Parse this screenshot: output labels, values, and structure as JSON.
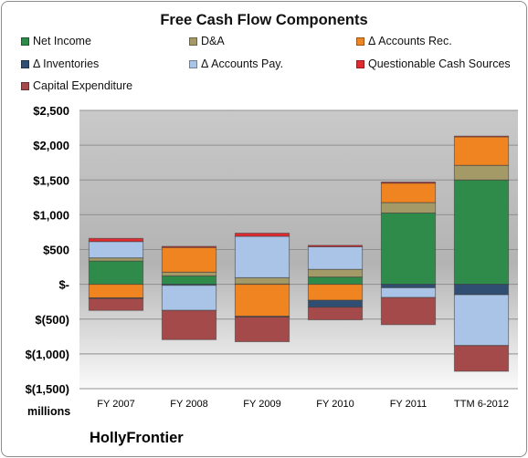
{
  "chart_data": {
    "type": "bar",
    "stacked": true,
    "title": "Free Cash Flow Components",
    "unit_label": "millions",
    "company": "HollyFrontier",
    "ylim": [
      -1500,
      2500
    ],
    "yticks": [
      {
        "value": 2500,
        "label": "$2,500"
      },
      {
        "value": 2000,
        "label": "$2,000"
      },
      {
        "value": 1500,
        "label": "$1,500"
      },
      {
        "value": 1000,
        "label": "$1,000"
      },
      {
        "value": 500,
        "label": "$500"
      },
      {
        "value": 0,
        "label": "$-"
      },
      {
        "value": -500,
        "label": "$(500)"
      },
      {
        "value": -1000,
        "label": "$(1,000)"
      },
      {
        "value": -1500,
        "label": "$(1,500)"
      }
    ],
    "grid": true,
    "legend_position": "top",
    "categories": [
      "FY 2007",
      "FY 2008",
      "FY 2009",
      "FY 2010",
      "FY 2011",
      "TTM 6-2012"
    ],
    "series": [
      {
        "name": "Net Income",
        "color": "#2e8b4a",
        "values": [
          335,
          120,
          5,
          105,
          1025,
          1500
        ]
      },
      {
        "name": "D&A",
        "color": "#a49a67",
        "values": [
          45,
          55,
          90,
          110,
          150,
          210
        ]
      },
      {
        "name": "Δ Accounts Rec.",
        "color": "#ef8421",
        "values": [
          -195,
          355,
          -460,
          -230,
          280,
          410
        ]
      },
      {
        "name": "Δ Inventories",
        "color": "#2f4e72",
        "values": [
          -10,
          -15,
          -10,
          -100,
          -50,
          -150
        ]
      },
      {
        "name": "Δ Accounts Pay.",
        "color": "#a9c4e6",
        "values": [
          235,
          -360,
          595,
          325,
          -140,
          -730
        ]
      },
      {
        "name": "Questionable Cash Sources",
        "color": "#e02a30",
        "values": [
          45,
          15,
          45,
          20,
          15,
          10
        ]
      },
      {
        "name": "Capital Expenditure",
        "color": "#a44a4a",
        "values": [
          -170,
          -420,
          -355,
          -180,
          -390,
          -370
        ]
      }
    ]
  }
}
